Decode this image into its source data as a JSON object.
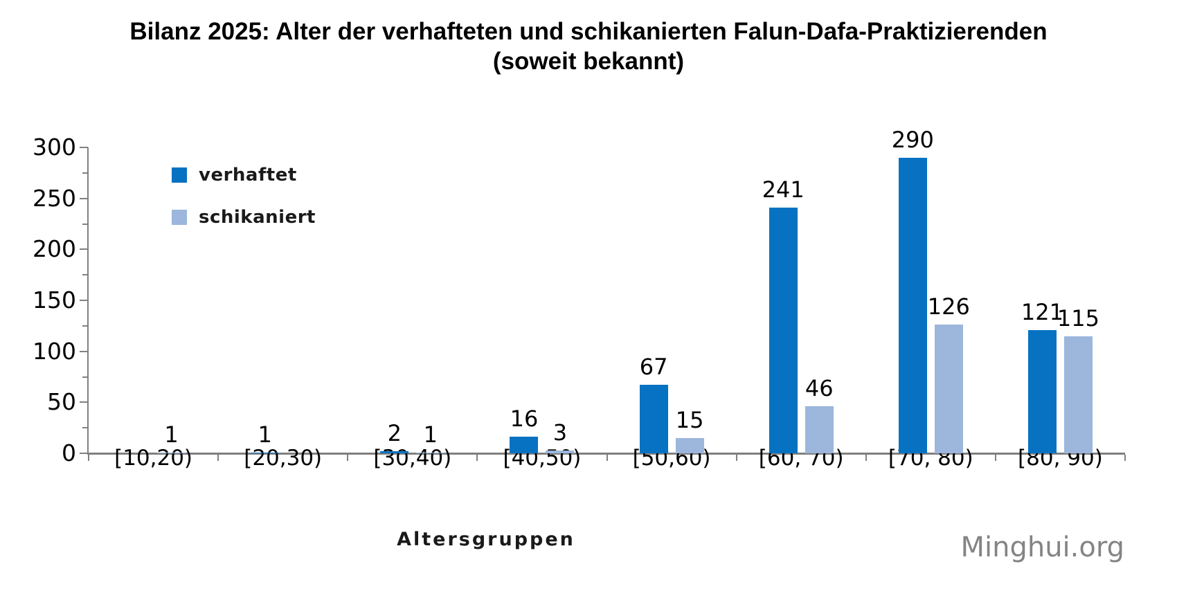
{
  "title": {
    "line1": "Bilanz 2025: Alter der verhafteten und schikanierten Falun-Dafa-Praktizierenden",
    "line2": "(soweit bekannt)"
  },
  "watermark": "Minghui.org",
  "chart_data": {
    "type": "bar",
    "title": "Bilanz 2025: Alter der verhafteten und schikanierten Falun-Dafa-Praktizierenden (soweit bekannt)",
    "categories": [
      "[10,20)",
      "[20,30)",
      "[30,40)",
      "[40,50)",
      "[50,60)",
      "[60, 70)",
      "[70, 80)",
      "[80, 90)"
    ],
    "series": [
      {
        "name": "verhaftet",
        "color": "#0872c2",
        "values": [
          null,
          1,
          2,
          16,
          67,
          241,
          290,
          121
        ]
      },
      {
        "name": "schikaniert",
        "color": "#9cb6dc",
        "values": [
          1,
          null,
          1,
          3,
          15,
          46,
          126,
          115
        ]
      }
    ],
    "xlabel": "Altersgruppen",
    "ylabel": "",
    "ylim": [
      0,
      300
    ],
    "yticks": [
      0,
      50,
      100,
      150,
      200,
      250,
      300
    ],
    "minor_tick_step": 25,
    "grid": false,
    "legend_position": "top-left",
    "axis_color": "#808080",
    "text_color": "#000000"
  }
}
